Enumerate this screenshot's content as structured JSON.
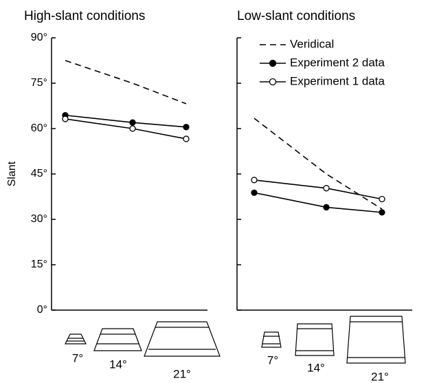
{
  "chart_data": [
    {
      "type": "line",
      "title": "High-slant conditions",
      "ylabel": "Slant",
      "categories": [
        "7°",
        "14°",
        "21°"
      ],
      "ylim": [
        0,
        90
      ],
      "yticks": [
        {
          "value": 0,
          "label": "0°"
        },
        {
          "value": 15,
          "label": "15°"
        },
        {
          "value": 30,
          "label": "30°"
        },
        {
          "value": 45,
          "label": "45°"
        },
        {
          "value": 60,
          "label": "60°"
        },
        {
          "value": 75,
          "label": "75°"
        },
        {
          "value": 90,
          "label": "90°"
        }
      ],
      "series": [
        {
          "color": "#000",
          "style": "dashed",
          "marker": "none",
          "values": [
            82.5,
            75,
            68.2
          ]
        },
        {
          "color": "#000",
          "style": "solid",
          "marker": "filled",
          "values": [
            64.4,
            62,
            60.5
          ]
        },
        {
          "color": "#000",
          "style": "solid",
          "marker": "open",
          "values": [
            63.2,
            60,
            56.6
          ]
        }
      ]
    },
    {
      "type": "line",
      "title": "Low-slant conditions",
      "legend": "upper right",
      "categories": [
        "7°",
        "14°",
        "21°"
      ],
      "ylim": [
        0,
        90
      ],
      "yticks": [
        0,
        15,
        30,
        45,
        60,
        75,
        90
      ],
      "series": [
        {
          "name": "Veridical",
          "color": "#000",
          "style": "dashed",
          "marker": "none",
          "values": [
            63.4,
            45,
            33.4
          ]
        },
        {
          "name": "Experiment 2 data",
          "color": "#000",
          "style": "solid",
          "marker": "filled",
          "values": [
            38.8,
            34,
            32.3
          ]
        },
        {
          "name": "Experiment 1 data",
          "color": "#000",
          "style": "solid",
          "marker": "open",
          "values": [
            43,
            40.3,
            36.7
          ]
        }
      ]
    }
  ]
}
